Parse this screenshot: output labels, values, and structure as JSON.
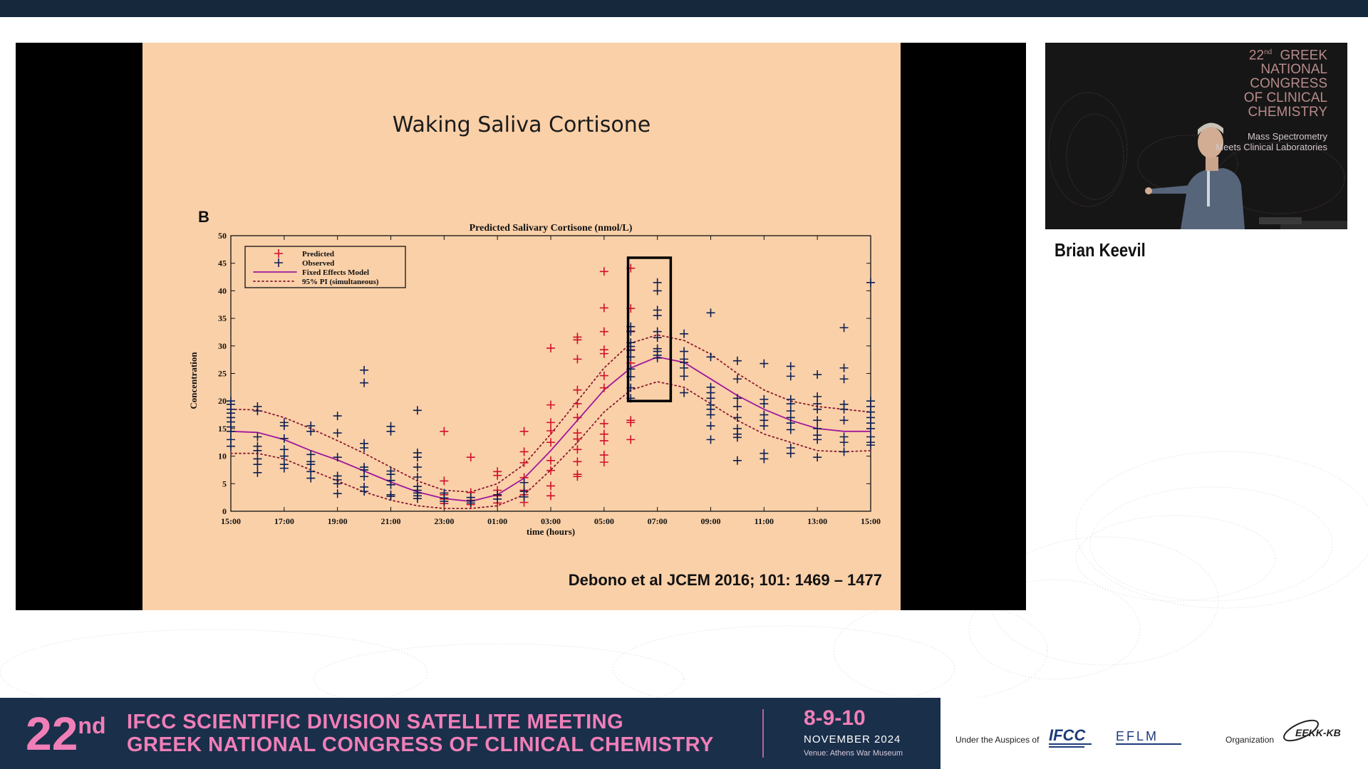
{
  "slide": {
    "title": "Waking Saliva Cortisone",
    "panel_letter": "B",
    "citation": "Debono et al JCEM 2016; 101: 1469 – 1477"
  },
  "chart_data": {
    "type": "scatter",
    "title": "Predicted Salivary Cortisone (nmol/L)",
    "xlabel": "time (hours)",
    "ylabel": "Concentration",
    "x_ticks": [
      "15:00",
      "17:00",
      "19:00",
      "21:00",
      "23:00",
      "01:00",
      "03:00",
      "05:00",
      "07:00",
      "09:00",
      "11:00",
      "13:00",
      "15:00"
    ],
    "y_ticks": [
      0,
      5,
      10,
      15,
      20,
      25,
      30,
      35,
      40,
      45,
      50
    ],
    "xlim": [
      0,
      24
    ],
    "ylim": [
      0,
      50
    ],
    "x_unit": "hours after 15:00",
    "legend_position": "top-left",
    "legend": [
      {
        "label": "Predicted",
        "marker": "plus",
        "color": "#d0102a"
      },
      {
        "label": "Observed",
        "marker": "plus",
        "color": "#0c1f55"
      },
      {
        "label": "Fixed Effects Model",
        "marker": "line",
        "color": "#a0179c"
      },
      {
        "label": "95% PI (simultaneous)",
        "marker": "dotted",
        "color": "#8a1a30"
      }
    ],
    "highlight_box": {
      "x_range": [
        14.9,
        16.5
      ],
      "y_range": [
        20,
        46
      ]
    },
    "series": [
      {
        "name": "Fixed Effects Model",
        "type": "line",
        "x": [
          0,
          1,
          2,
          3,
          4,
          5,
          6,
          7,
          8,
          9,
          10,
          11,
          12,
          13,
          14,
          15,
          16,
          17,
          18,
          19,
          20,
          21,
          22,
          23,
          24
        ],
        "values": [
          14.5,
          14.3,
          13,
          11,
          9.3,
          7.3,
          5.3,
          3.5,
          2.3,
          1.8,
          3,
          6,
          11,
          16.5,
          22,
          26,
          28,
          27,
          24,
          21,
          18.5,
          16.5,
          15,
          14.5,
          14.5
        ]
      },
      {
        "name": "95% PI upper",
        "type": "dotted",
        "x": [
          0,
          1,
          2,
          3,
          4,
          5,
          6,
          7,
          8,
          9,
          10,
          11,
          12,
          13,
          14,
          15,
          16,
          17,
          18,
          19,
          20,
          21,
          22,
          23,
          24
        ],
        "values": [
          18.5,
          18.4,
          17,
          15,
          12.8,
          10.5,
          8,
          5.5,
          3.8,
          3.5,
          5,
          8.5,
          14,
          20,
          26,
          30.5,
          32,
          31,
          28.5,
          25,
          22,
          20,
          19,
          18.5,
          18
        ]
      },
      {
        "name": "95% PI lower",
        "type": "dotted",
        "x": [
          0,
          1,
          2,
          3,
          4,
          5,
          6,
          7,
          8,
          9,
          10,
          11,
          12,
          13,
          14,
          15,
          16,
          17,
          18,
          19,
          20,
          21,
          22,
          23,
          24
        ],
        "values": [
          10.5,
          10.5,
          9.5,
          7.5,
          5.5,
          3.5,
          2,
          1,
          0.5,
          0.5,
          1,
          3,
          7.5,
          12.5,
          18,
          22,
          23.5,
          22.5,
          19.5,
          16.5,
          14,
          12.5,
          11,
          10.8,
          11
        ]
      },
      {
        "name": "Predicted",
        "type": "scatter",
        "points": [
          [
            8,
            14.5
          ],
          [
            8,
            5.5
          ],
          [
            8,
            3
          ],
          [
            8,
            2.2
          ],
          [
            8,
            1.4
          ],
          [
            9,
            1.2
          ],
          [
            9,
            2
          ],
          [
            9,
            2.5
          ],
          [
            9,
            3.4
          ],
          [
            9,
            9.8
          ],
          [
            10,
            1.5
          ],
          [
            10,
            2.8
          ],
          [
            10,
            3.8
          ],
          [
            10,
            6.5
          ],
          [
            10,
            7.2
          ],
          [
            11,
            1.6
          ],
          [
            11,
            3
          ],
          [
            11,
            3.8
          ],
          [
            11,
            6.1
          ],
          [
            11,
            8.8
          ],
          [
            11,
            10.8
          ],
          [
            11,
            14.5
          ],
          [
            12,
            2.8
          ],
          [
            12,
            4.6
          ],
          [
            12,
            7.4
          ],
          [
            12,
            9.2
          ],
          [
            12,
            12.5
          ],
          [
            12,
            14.6
          ],
          [
            12,
            16.1
          ],
          [
            12,
            19.3
          ],
          [
            12,
            29.6
          ],
          [
            13,
            6.3
          ],
          [
            13,
            6.7
          ],
          [
            13,
            9
          ],
          [
            13,
            11.2
          ],
          [
            13,
            13.1
          ],
          [
            13,
            14.2
          ],
          [
            13,
            17
          ],
          [
            13,
            19.5
          ],
          [
            13,
            22
          ],
          [
            13,
            27.6
          ],
          [
            13,
            31.1
          ],
          [
            13,
            31.6
          ],
          [
            14,
            8.9
          ],
          [
            14,
            10.2
          ],
          [
            14,
            12.8
          ],
          [
            14,
            14
          ],
          [
            14,
            15.9
          ],
          [
            14,
            22.4
          ],
          [
            14,
            24.6
          ],
          [
            14,
            28.6
          ],
          [
            14,
            29.3
          ],
          [
            14,
            32.6
          ],
          [
            14,
            36.9
          ],
          [
            14,
            43.5
          ],
          [
            15,
            13
          ],
          [
            15,
            16.1
          ],
          [
            15,
            16.5
          ],
          [
            15,
            26.9
          ],
          [
            15,
            29.3
          ],
          [
            15,
            32.7
          ],
          [
            15,
            36.8
          ],
          [
            15,
            44.1
          ]
        ]
      },
      {
        "name": "Observed",
        "type": "scatter",
        "points": [
          [
            0,
            11.8
          ],
          [
            0,
            13
          ],
          [
            0,
            14.5
          ],
          [
            0,
            15.3
          ],
          [
            0,
            16.2
          ],
          [
            0,
            17
          ],
          [
            0,
            17.8
          ],
          [
            0,
            18.5
          ],
          [
            0,
            19.4
          ],
          [
            0,
            20
          ],
          [
            1,
            7
          ],
          [
            1,
            8.5
          ],
          [
            1,
            9.5
          ],
          [
            1,
            11
          ],
          [
            1,
            11.8
          ],
          [
            1,
            13.5
          ],
          [
            1,
            18.2
          ],
          [
            1,
            19
          ],
          [
            2,
            7.8
          ],
          [
            2,
            8.5
          ],
          [
            2,
            10
          ],
          [
            2,
            11.2
          ],
          [
            2,
            13.2
          ],
          [
            2,
            15.5
          ],
          [
            2,
            16.1
          ],
          [
            3,
            6
          ],
          [
            3,
            7.2
          ],
          [
            3,
            8.5
          ],
          [
            3,
            9
          ],
          [
            3,
            10.3
          ],
          [
            3,
            14.5
          ],
          [
            3,
            15.5
          ],
          [
            4,
            3.2
          ],
          [
            4,
            5
          ],
          [
            4,
            5.7
          ],
          [
            4,
            6.4
          ],
          [
            4,
            9.8
          ],
          [
            4,
            14.2
          ],
          [
            4,
            17.3
          ],
          [
            5,
            3.6
          ],
          [
            5,
            4.4
          ],
          [
            5,
            6.3
          ],
          [
            5,
            7.5
          ],
          [
            5,
            8
          ],
          [
            5,
            11.5
          ],
          [
            5,
            12.3
          ],
          [
            5,
            23.3
          ],
          [
            5,
            25.6
          ],
          [
            6,
            2.7
          ],
          [
            6,
            3
          ],
          [
            6,
            4.8
          ],
          [
            6,
            5.6
          ],
          [
            6,
            6.7
          ],
          [
            6,
            7.3
          ],
          [
            6,
            14.5
          ],
          [
            6,
            15.4
          ],
          [
            7,
            2.3
          ],
          [
            7,
            2.8
          ],
          [
            7,
            3.3
          ],
          [
            7,
            3.8
          ],
          [
            7,
            4.5
          ],
          [
            7,
            6.2
          ],
          [
            7,
            8
          ],
          [
            7,
            9.8
          ],
          [
            7,
            10.6
          ],
          [
            7,
            18.3
          ],
          [
            8,
            1.8
          ],
          [
            8,
            2.4
          ],
          [
            8,
            3.3
          ],
          [
            9,
            1.5
          ],
          [
            9,
            1.9
          ],
          [
            9,
            2.5
          ],
          [
            10,
            2.2
          ],
          [
            10,
            3
          ],
          [
            11,
            2.6
          ],
          [
            11,
            3.6
          ],
          [
            11,
            5.2
          ],
          [
            15,
            20.5
          ],
          [
            15,
            22.4
          ],
          [
            15,
            24.4
          ],
          [
            15,
            25.8
          ],
          [
            15,
            28
          ],
          [
            15,
            29.2
          ],
          [
            15,
            29.9
          ],
          [
            15,
            30.6
          ],
          [
            15,
            32.6
          ],
          [
            15,
            33.5
          ],
          [
            16,
            27.8
          ],
          [
            16,
            28.3
          ],
          [
            16,
            29
          ],
          [
            16,
            29.5
          ],
          [
            16,
            31.5
          ],
          [
            16,
            32.6
          ],
          [
            16,
            35.5
          ],
          [
            16,
            36.5
          ],
          [
            16,
            40
          ],
          [
            16,
            41.5
          ],
          [
            17,
            21.5
          ],
          [
            17,
            24.5
          ],
          [
            17,
            26
          ],
          [
            17,
            27
          ],
          [
            17,
            27.6
          ],
          [
            17,
            29
          ],
          [
            17,
            32.2
          ],
          [
            18,
            13
          ],
          [
            18,
            15.5
          ],
          [
            18,
            17.5
          ],
          [
            18,
            18.5
          ],
          [
            18,
            19.3
          ],
          [
            18,
            20.5
          ],
          [
            18,
            21.5
          ],
          [
            18,
            22.5
          ],
          [
            18,
            28
          ],
          [
            18,
            36
          ],
          [
            19,
            9.2
          ],
          [
            19,
            13.4
          ],
          [
            19,
            14
          ],
          [
            19,
            15
          ],
          [
            19,
            17
          ],
          [
            19,
            19
          ],
          [
            19,
            20.5
          ],
          [
            19,
            24
          ],
          [
            19,
            27.3
          ],
          [
            20,
            9.5
          ],
          [
            20,
            10.5
          ],
          [
            20,
            15.5
          ],
          [
            20,
            16.5
          ],
          [
            20,
            17.5
          ],
          [
            20,
            19.5
          ],
          [
            20,
            20.3
          ],
          [
            20,
            26.8
          ],
          [
            21,
            10.5
          ],
          [
            21,
            11.5
          ],
          [
            21,
            14.8
          ],
          [
            21,
            16
          ],
          [
            21,
            17
          ],
          [
            21,
            18.2
          ],
          [
            21,
            19.5
          ],
          [
            21,
            20.3
          ],
          [
            21,
            24.5
          ],
          [
            21,
            26.3
          ],
          [
            22,
            9.8
          ],
          [
            22,
            13
          ],
          [
            22,
            13.8
          ],
          [
            22,
            15
          ],
          [
            22,
            16.5
          ],
          [
            22,
            18.5
          ],
          [
            22,
            19.5
          ],
          [
            22,
            20.8
          ],
          [
            22,
            24.8
          ],
          [
            23,
            10.8
          ],
          [
            23,
            12.5
          ],
          [
            23,
            13.5
          ],
          [
            23,
            16.5
          ],
          [
            23,
            18.5
          ],
          [
            23,
            19.4
          ],
          [
            23,
            24
          ],
          [
            23,
            26
          ],
          [
            23,
            33.3
          ],
          [
            24,
            12
          ],
          [
            24,
            12.5
          ],
          [
            24,
            13.5
          ],
          [
            24,
            15
          ],
          [
            24,
            16
          ],
          [
            24,
            17
          ],
          [
            24,
            18
          ],
          [
            24,
            19
          ],
          [
            24,
            20
          ],
          [
            24,
            41.5
          ]
        ]
      }
    ]
  },
  "camera": {
    "congress_number": "22",
    "congress_suffix": "nd",
    "congress_lines": [
      "GREEK",
      "NATIONAL",
      "CONGRESS",
      "OF CLINICAL",
      "CHEMISTRY"
    ],
    "tagline_1": "Mass Spectrometry",
    "tagline_2": "Meets Clinical Laboratories"
  },
  "speaker": {
    "name": "Brian Keevil"
  },
  "banner": {
    "number": "22",
    "suffix": "nd",
    "line1": "IFCC SCIENTIFIC DIVISION SATELLITE MEETING",
    "line2": "GREEK NATIONAL CONGRESS OF CLINICAL CHEMISTRY",
    "dates": "8-9-10",
    "month": "NOVEMBER 2024",
    "venue": "Venue: Athens War Museum"
  },
  "footer": {
    "auspices_label": "Under the Auspices of",
    "organization_label": "Organization",
    "logo_ifcc": "IFCC",
    "logo_eflm": "EFLM",
    "logo_eekk": "EEKK-KB"
  }
}
